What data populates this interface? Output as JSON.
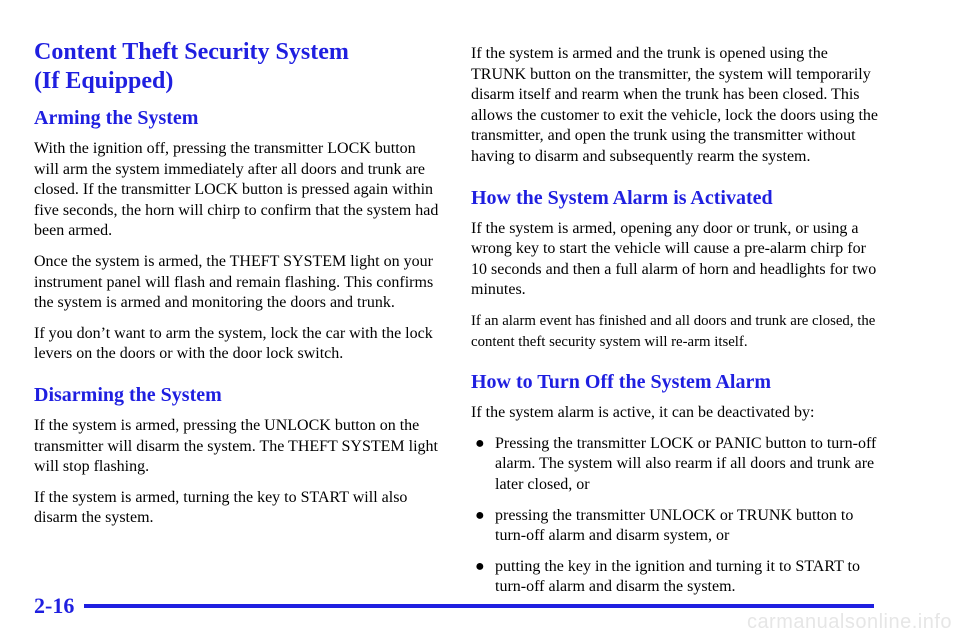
{
  "left": {
    "title_line1": "Content Theft Security System",
    "title_line2": "(If Equipped)",
    "arming": {
      "heading": "Arming the System",
      "p1": "With the ignition off, pressing the transmitter LOCK button will arm the system immediately after all doors and trunk are closed. If the transmitter LOCK button is pressed again within five seconds, the horn will chirp to confirm that the system had been armed.",
      "p2": "Once the system is armed, the THEFT SYSTEM light on your instrument panel will flash and remain flashing. This confirms the system is armed and monitoring the doors and trunk.",
      "p3": "If you don’t want to arm the system, lock the car with the lock levers on the doors or with the door lock switch."
    },
    "disarming": {
      "heading": "Disarming the System",
      "p1": "If the system is armed, pressing the UNLOCK button on the transmitter will disarm the system. The THEFT SYSTEM light will stop flashing.",
      "p2": "If the system is armed, turning the key to START will also disarm the system."
    }
  },
  "right": {
    "intro": "If the system is armed and the trunk is opened using the TRUNK button on the transmitter, the system will temporarily disarm itself and rearm when the trunk has been closed. This allows the customer to exit the vehicle, lock the doors using the transmitter, and open the trunk using the transmitter without having to disarm and subsequently rearm the system.",
    "activated": {
      "heading": "How the System Alarm is Activated",
      "p1": "If the system is armed, opening any door or trunk, or using a wrong key to start the vehicle will cause a pre‑alarm chirp for 10 seconds and then a full alarm of horn and headlights for two minutes.",
      "p2": "If an alarm event has finished and all doors and trunk are closed, the content theft security system will re‑arm itself."
    },
    "turnoff": {
      "heading": "How to Turn Off the System Alarm",
      "p1": "If the system alarm is active, it can be deactivated by:",
      "bullet_symbol": "●",
      "bullets": [
        "Pressing the transmitter LOCK or PANIC button to turn‑off alarm. The system will also rearm if all doors and trunk are later closed, or",
        "pressing the transmitter UNLOCK or TRUNK button to turn‑off alarm and disarm system, or",
        "putting the key in the ignition and turning it to START to turn‑off alarm and disarm the system."
      ]
    }
  },
  "footer": {
    "page_number": "2-16",
    "watermark": "carmanualsonline.info"
  },
  "colors": {
    "heading": "#1f1fe0",
    "text": "#000000",
    "background": "#ffffff"
  }
}
